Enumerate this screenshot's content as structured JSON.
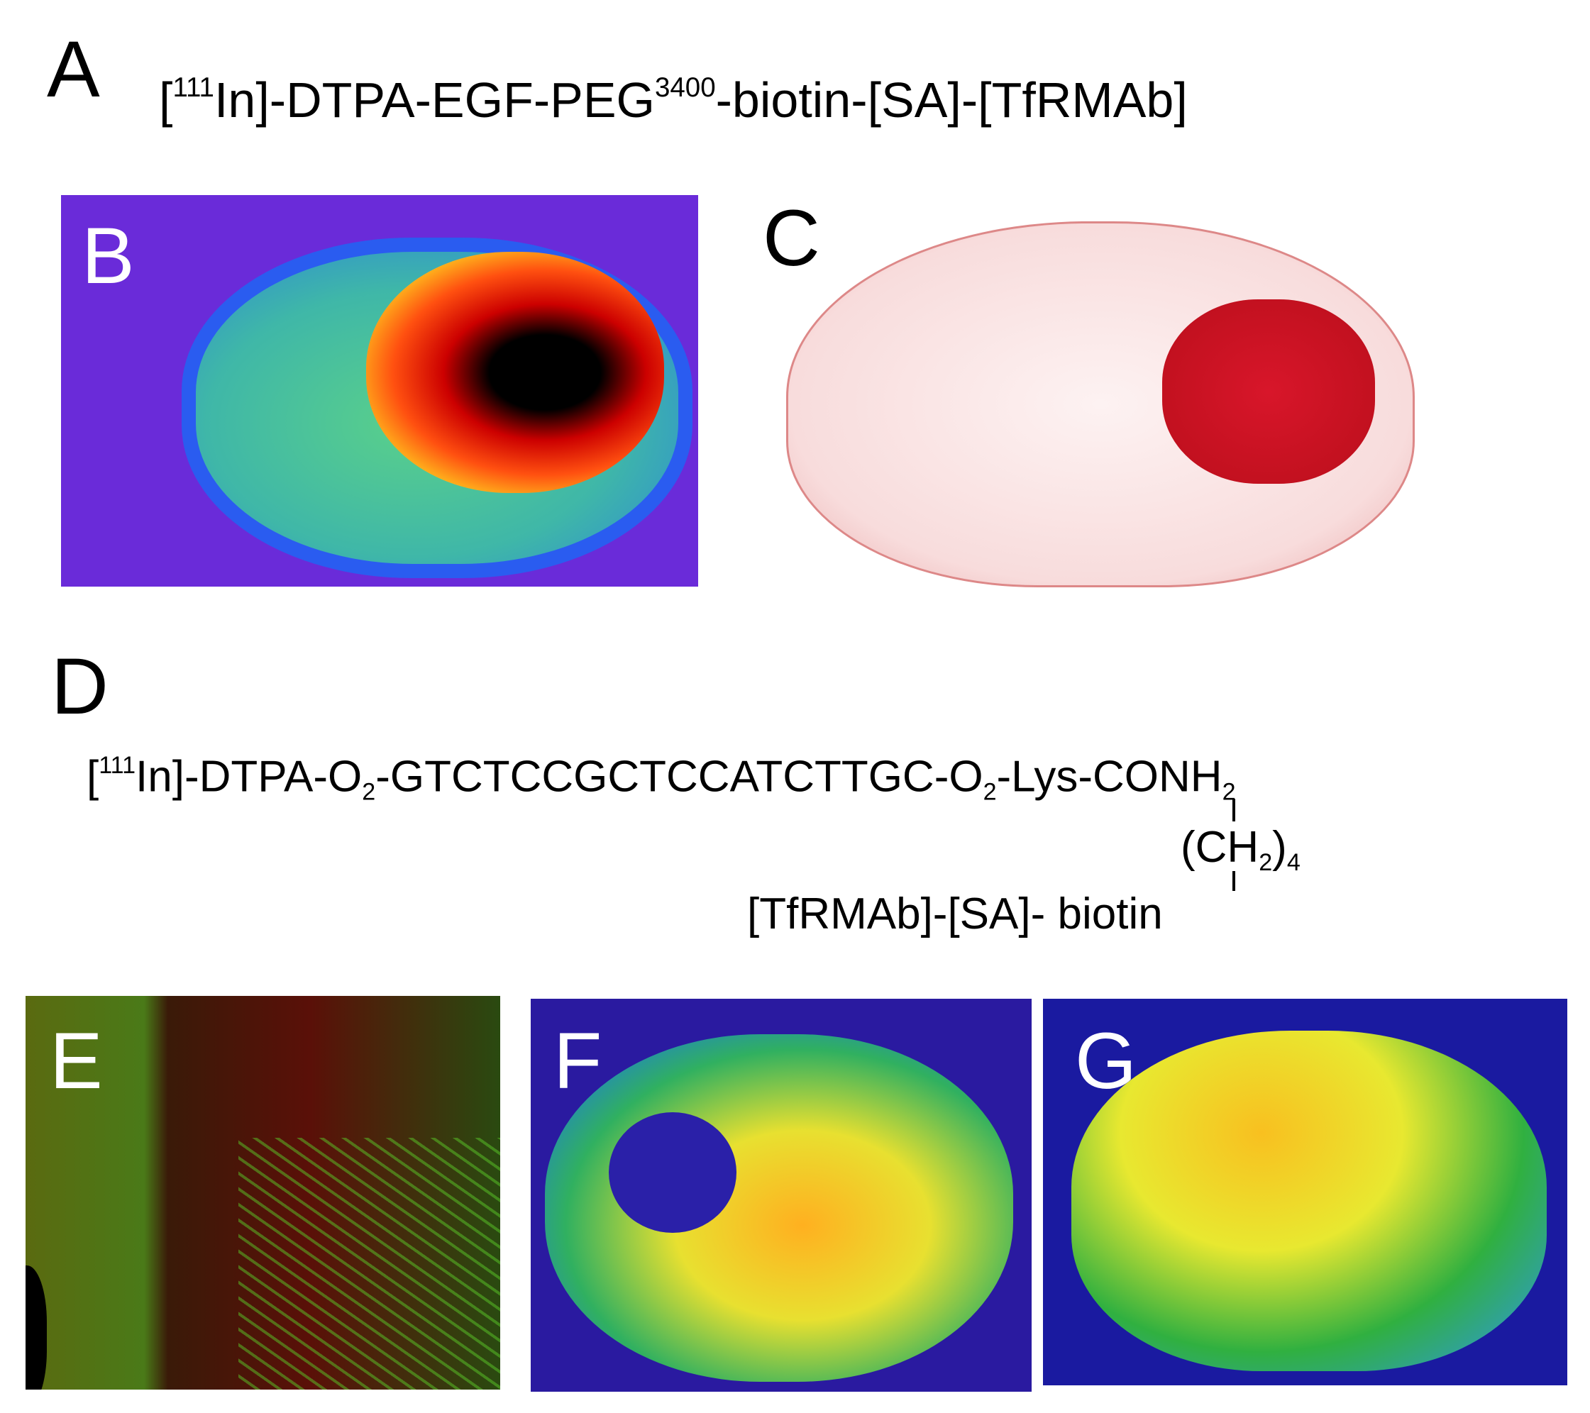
{
  "panel_labels": [
    "A",
    "B",
    "C",
    "D",
    "E",
    "F",
    "G"
  ],
  "construct_a": {
    "parts": [
      "[",
      "111",
      "In]-DTPA-EGF-PEG",
      "3400",
      "-biotin-[SA]-[TfRMAb]"
    ]
  },
  "construct_d": {
    "main": [
      "[",
      "111",
      "In]-DTPA-O",
      "2",
      "-GTCTCCGCTCCATCTTGC-O",
      "2",
      "-Lys-CONH",
      "2"
    ],
    "linker": [
      "(CH",
      "2",
      ")",
      "4"
    ],
    "conjugate": "[TfRMAb]-[SA]-",
    "biotin": "biotin"
  }
}
